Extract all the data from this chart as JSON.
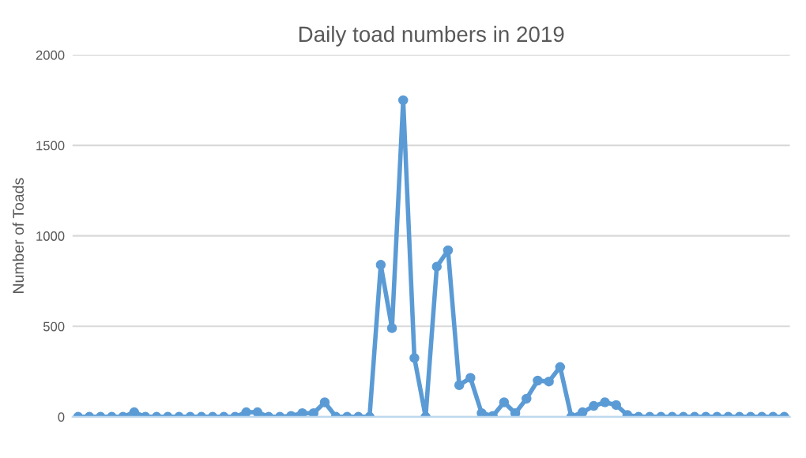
{
  "chart_data": {
    "type": "line",
    "title": "Daily toad numbers in 2019",
    "ylabel": "Number of Toads",
    "categories": [
      null,
      null,
      null,
      null,
      null,
      null,
      null,
      null,
      null,
      null,
      null,
      null,
      null,
      null,
      null,
      null,
      null,
      null,
      null,
      null,
      null,
      null,
      null,
      null,
      null,
      null,
      null,
      null,
      null,
      null,
      null,
      null,
      null,
      null,
      null,
      null,
      null,
      null,
      null,
      null,
      null,
      null,
      null,
      null,
      null,
      null,
      null,
      null,
      null,
      null,
      null,
      null,
      null,
      null,
      null,
      null,
      null,
      null,
      null,
      null,
      null,
      null,
      null,
      null
    ],
    "series": [
      {
        "color": "#5b9bd5",
        "values": [
          0,
          0,
          0,
          0,
          0,
          25,
          0,
          0,
          0,
          0,
          0,
          0,
          0,
          0,
          0,
          25,
          25,
          0,
          0,
          5,
          20,
          20,
          80,
          0,
          0,
          0,
          0,
          840,
          490,
          1750,
          325,
          0,
          830,
          920,
          175,
          215,
          20,
          5,
          80,
          20,
          100,
          200,
          195,
          275,
          0,
          25,
          60,
          80,
          65,
          10,
          0,
          0,
          0,
          0,
          0,
          0,
          0,
          0,
          0,
          0,
          0,
          0,
          0,
          0
        ]
      }
    ],
    "ylim": [
      0,
      2000
    ],
    "yticks": [
      0,
      500,
      1000,
      1500,
      2000
    ],
    "grid": "y",
    "marker": "circle",
    "line_style": "solid",
    "tick_labels": "y"
  }
}
